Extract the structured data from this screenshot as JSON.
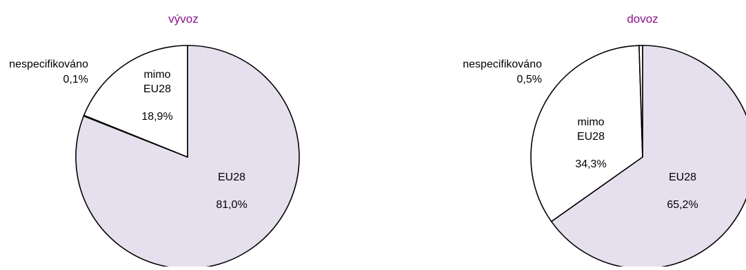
{
  "chart_data": [
    {
      "type": "pie",
      "title": "vývoz",
      "slices": [
        {
          "label_lines": [
            "EU28"
          ],
          "value_text": "81,0%",
          "value": 81.0,
          "color": "#e6e0ee"
        },
        {
          "label_lines": [
            "nespecifikováno"
          ],
          "value_text": "0,1%",
          "value": 0.1,
          "color": "#ffffff"
        },
        {
          "label_lines": [
            "mimo",
            "EU28"
          ],
          "value_text": "18,9%",
          "value": 18.9,
          "color": "#ffffff"
        }
      ]
    },
    {
      "type": "pie",
      "title": "dovoz",
      "slices": [
        {
          "label_lines": [
            "EU28"
          ],
          "value_text": "65,2%",
          "value": 65.2,
          "color": "#e6e0ee"
        },
        {
          "label_lines": [
            "mimo",
            "EU28"
          ],
          "value_text": "34,3%",
          "value": 34.3,
          "color": "#ffffff"
        },
        {
          "label_lines": [
            "nespecifikováno"
          ],
          "value_text": "0,5%",
          "value": 0.5,
          "color": "#ffffff"
        }
      ]
    }
  ],
  "colors": {
    "title": "#8b0f8b",
    "stroke": "#000000",
    "text": "#000000"
  }
}
